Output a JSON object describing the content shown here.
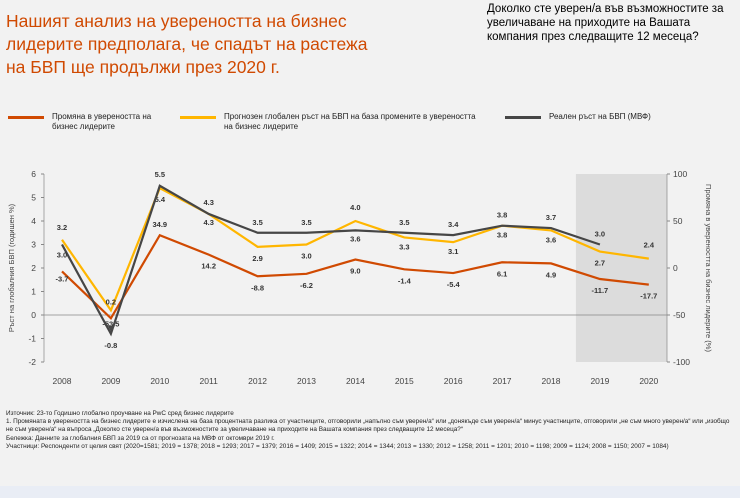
{
  "title": "Нашият анализ на увереността на бизнес лидерите предполага, че спадът на растежа на БВП ще продължи през 2020 г.",
  "question": "Доколко сте уверен/а във възможностите за увеличаване на приходите на Вашата компания през следващите  12 месеца?",
  "legend": [
    {
      "label": "Промяна в увереността на бизнес лидерите",
      "color": "#d04a02"
    },
    {
      "label": "Прогнозен глобален ръст на БВП на база промените в увереността на бизнес лидерите",
      "color": "#ffb600"
    },
    {
      "label": "Реален ръст на БВП (МВФ)",
      "color": "#464646"
    }
  ],
  "chart_data": {
    "type": "line",
    "x": [
      "2008",
      "2009",
      "2010",
      "2011",
      "2012",
      "2013",
      "2014",
      "2015",
      "2016",
      "2017",
      "2018",
      "2019",
      "2020"
    ],
    "ylabel": "Ръст на глобалния БВП (годишен %)",
    "ylabel_right": "Промяна в увереността на бизнес лидерите (%)",
    "ylim": [
      -2,
      6
    ],
    "yticks": [
      "-2",
      "-1",
      "0",
      "1",
      "2",
      "3",
      "4",
      "5",
      "6"
    ],
    "ylim_right": [
      -100,
      100
    ],
    "yticks_right": [
      "-100",
      "-50",
      "0",
      "50",
      "100"
    ],
    "shaded_years": [
      "2019",
      "2020"
    ],
    "series": [
      {
        "name": "Промяна в увереността на бизнес лидерите",
        "axis": "right",
        "color": "#d04a02",
        "values": [
          -3.7,
          -53.5,
          34.9,
          14.2,
          -8.8,
          -6.2,
          9.0,
          -1.4,
          -5.4,
          6.1,
          4.9,
          -11.7,
          -17.7
        ],
        "labels": [
          "-3.7",
          "-53.5",
          "34.9",
          "14.2",
          "-8.8",
          "-6.2",
          "9.0",
          "-1.4",
          "-5.4",
          "6.1",
          "4.9",
          "-11.7",
          "-17.7"
        ]
      },
      {
        "name": "Прогнозен глобален ръст на БВП",
        "axis": "left",
        "color": "#ffb600",
        "values": [
          3.2,
          0.2,
          5.4,
          4.3,
          2.9,
          3.0,
          4.0,
          3.3,
          3.1,
          3.8,
          3.6,
          2.7,
          2.4
        ],
        "labels": [
          "3.2",
          "0.2",
          "5.4",
          "4.3",
          "2.9",
          "3.0",
          "4.0",
          "3.3",
          "3.1",
          "3.8",
          "3.6",
          "2.7",
          "2.4"
        ]
      },
      {
        "name": "Реален ръст на БВП (МВФ)",
        "axis": "left",
        "color": "#464646",
        "values": [
          3.0,
          -0.8,
          5.5,
          4.3,
          3.5,
          3.5,
          3.6,
          3.5,
          3.4,
          3.8,
          3.7,
          3.0,
          null
        ],
        "labels": [
          "3.0",
          "-0.8",
          "5.5",
          "4.3",
          "3.5",
          "3.5",
          "3.6",
          "3.5",
          "3.4",
          "3.8",
          "3.7",
          "3.0",
          null
        ]
      }
    ]
  },
  "notes": {
    "source": "Източник: 23-то Годишно глобално проучване на PwC сред бизнес лидерите",
    "note1": "1. Промяната в увереността на бизнес лидерите е изчислена на база процентната разлика от участниците, отговорили „напълно съм уверен/а“ или „донякъде съм уверен/а“ минус участниците, отговорили „не съм много уверен/а“ или „изобщо не съм уверен/а“ на въпроса „Доколко сте уверен/а във възможностите за увеличаване на приходите на Вашата компания през следващите 12 месеца?“",
    "remark": "Бележка: Данните за глобалния БВП за 2019 са от прогнозата на МВФ от октомври 2019 г.",
    "participants": "Участници: Респонденти от целия свят (2020=1581; 2019 = 1378; 2018 = 1293; 2017 = 1379; 2016 = 1409; 2015 = 1322; 2014 = 1344; 2013 = 1330; 2012 = 1258; 2011 = 1201; 2010 = 1198; 2009 = 1124; 2008 = 1150; 2007 = 1084)"
  }
}
